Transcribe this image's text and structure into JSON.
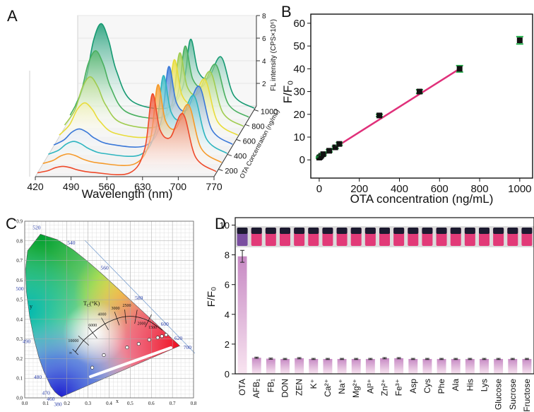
{
  "panel_labels": [
    "A",
    "B",
    "C",
    "D"
  ],
  "chart_data": [
    {
      "type": "waterfall",
      "x_label": "Wavelength (nm)",
      "y_label": "FL intensity (CPS×10⁶)",
      "z_label": "OTA Concentration (ng/mL)",
      "x": [
        420,
        440,
        455,
        470,
        485,
        500,
        530,
        600,
        630,
        645,
        660,
        680,
        705,
        730,
        770
      ],
      "xlim": [
        420,
        770
      ],
      "xticks": [
        420,
        490,
        560,
        630,
        700,
        770
      ],
      "ylim": [
        0,
        8
      ],
      "yticks": [
        2,
        4,
        6,
        8
      ],
      "zlim": [
        100,
        1050
      ],
      "zticks": [
        200,
        400,
        600,
        800,
        1000
      ],
      "series": [
        {
          "color": "#ee4a2a",
          "values": [
            0.03,
            0.21,
            0.48,
            0.6,
            0.48,
            0.27,
            0.06,
            0.01,
            2.11,
            7,
            3.85,
            3.15,
            5.25,
            1.4,
            0.14
          ]
        },
        {
          "color": "#f59a2a",
          "values": [
            0.05,
            0.32,
            0.72,
            0.9,
            0.72,
            0.41,
            0.09,
            0.02,
            2.12,
            7,
            3.85,
            3.15,
            5.25,
            1.4,
            0.14
          ]
        },
        {
          "color": "#2eb5c0",
          "values": [
            0.06,
            0.42,
            0.96,
            1.2,
            0.96,
            0.54,
            0.12,
            0.02,
            2.12,
            7,
            3.85,
            3.15,
            5.25,
            1.4,
            0.14
          ]
        },
        {
          "color": "#3a78d8",
          "values": [
            0.08,
            0.53,
            1.2,
            1.5,
            1.2,
            0.68,
            0.15,
            0.03,
            2.13,
            7,
            3.85,
            3.15,
            5.25,
            1.4,
            0.14
          ]
        },
        {
          "color": "#e8dc3a",
          "values": [
            0.15,
            1.05,
            2.4,
            3,
            2.4,
            1.35,
            0.3,
            0.06,
            2.1,
            6.8,
            3.74,
            3.06,
            5.1,
            1.36,
            0.14
          ]
        },
        {
          "color": "#a0cc50",
          "values": [
            0.23,
            1.58,
            3.6,
            4.5,
            3.6,
            2.03,
            0.45,
            0.09,
            2.07,
            6.6,
            3.63,
            2.97,
            4.95,
            1.32,
            0.13
          ]
        },
        {
          "color": "#4ab060",
          "values": [
            0.3,
            2.1,
            4.8,
            6,
            4.8,
            2.7,
            0.6,
            0.12,
            2.04,
            6.4,
            3.52,
            2.88,
            4.8,
            1.28,
            0.13
          ]
        },
        {
          "color": "#169a72",
          "values": [
            0.38,
            2.66,
            6.08,
            7.6,
            6.08,
            3.42,
            0.76,
            0.15,
            2.01,
            6.2,
            3.41,
            2.79,
            4.65,
            1.24,
            0.12
          ]
        }
      ]
    },
    {
      "type": "scatter",
      "x_label": "OTA concentration (ng/mL)",
      "y_label": "F/F₀",
      "xlim": [
        -42,
        1064
      ],
      "xticks": [
        0,
        200,
        400,
        600,
        800,
        1000
      ],
      "ylim": [
        -8,
        64
      ],
      "yticks": [
        0,
        10,
        20,
        30,
        40,
        50,
        60
      ],
      "x": [
        0,
        5,
        10,
        20,
        50,
        80,
        100,
        300,
        500,
        700,
        1000
      ],
      "values": [
        1,
        1.3,
        1.8,
        2.5,
        4,
        5.5,
        7,
        19.5,
        30,
        40,
        52.5
      ],
      "errors": [
        0.3,
        0.3,
        0.4,
        0.4,
        0.5,
        0.5,
        0.6,
        0.5,
        0.8,
        1.4,
        1.6
      ],
      "color": "#111111",
      "error_color": "#22b04a",
      "fit": {
        "x": [
          0,
          700
        ],
        "values": [
          1,
          40
        ],
        "color": "#e0307a"
      }
    },
    {
      "type": "cie",
      "x_label": "x",
      "y_label": "y",
      "xlim": [
        0,
        0.8
      ],
      "xticks": [
        {
          "value": 0,
          "label": "0.0"
        },
        0.1,
        0.2,
        0.3,
        0.4,
        0.5,
        0.6,
        0.7,
        0.8
      ],
      "ylim": [
        0,
        0.9
      ],
      "yticks": [
        {
          "value": 0,
          "label": "0.0"
        },
        0.1,
        0.2,
        0.3,
        0.4,
        0.5,
        0.6,
        0.7,
        0.8,
        0.9
      ],
      "wavelength_labels": [
        "380",
        "460",
        "470",
        "480",
        "490",
        "500",
        "520",
        "540",
        "560",
        "580",
        "600",
        "620",
        "700"
      ],
      "temperature_labels": [
        "∞",
        "10000",
        "6000",
        "4000",
        "3000",
        "2500",
        "2000",
        "1500"
      ],
      "ct_symbol": "T",
      "ct_subscript": "C",
      "ct_unit": "(°K)",
      "x": [
        0.32,
        0.375,
        0.485,
        0.54,
        0.59,
        0.63,
        0.65,
        0.67
      ],
      "values": [
        0.154,
        0.218,
        0.257,
        0.275,
        0.296,
        0.307,
        0.314,
        0.321
      ],
      "color": "#ffffff"
    },
    {
      "type": "bar",
      "y_label": "F/F₀",
      "categories": [
        "OTA",
        "AFB₁",
        "FB₁",
        "DON",
        "ZEN",
        "K⁺",
        "Ca²⁺",
        "Na⁺",
        "Mg²⁺",
        "Al³⁺",
        "Zn²⁺",
        "Fe³⁺",
        "Asp",
        "Cys",
        "Phe",
        "Ala",
        "His",
        "Lys",
        "Glucose",
        "Sucrose",
        "Fructose"
      ],
      "values": [
        7.9,
        1.08,
        1.02,
        1.0,
        1.05,
        1.0,
        1.0,
        1.0,
        1.0,
        1.0,
        1.05,
        1.05,
        1.0,
        1.0,
        1.0,
        1.0,
        1.0,
        1.0,
        1.0,
        1.0,
        1.0
      ],
      "errors": [
        0.4,
        0.04,
        0.04,
        0.04,
        0.04,
        0.04,
        0.04,
        0.04,
        0.04,
        0.04,
        0.04,
        0.04,
        0.04,
        0.04,
        0.04,
        0.04,
        0.04,
        0.04,
        0.04,
        0.04,
        0.04
      ],
      "ylim": [
        0,
        10.5
      ],
      "yticks": [
        0,
        2,
        4,
        6,
        8,
        10
      ],
      "color": "#c78ac4",
      "color_light": "#f8e4f0"
    }
  ]
}
